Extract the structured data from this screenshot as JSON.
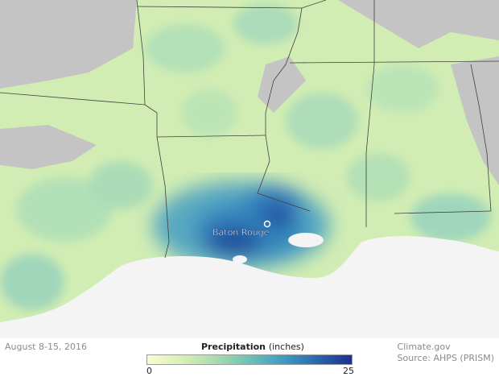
{
  "map": {
    "city_label": "Baton Rouge",
    "colors": {
      "no_data": "#c9c9c9",
      "light": "#d7efb7",
      "mid": "#8fd3b2",
      "heavy": "#2e7fbf",
      "extreme": "#1f2f8f",
      "gulf": "#f4f4f4",
      "borders": "#404040"
    }
  },
  "footer": {
    "date": "August 8-15, 2016",
    "credit_line1": "Climate.gov",
    "credit_line2": "Source: AHPS (PRISM)"
  },
  "legend": {
    "title": "Precipitation",
    "units": "(inches)",
    "min": "0",
    "max": "25",
    "gradient": [
      "#fbfbd2",
      "#d9f0b5",
      "#a9dcaf",
      "#6dc0b6",
      "#3f9bc2",
      "#2a66ad",
      "#1f2f8f"
    ]
  }
}
